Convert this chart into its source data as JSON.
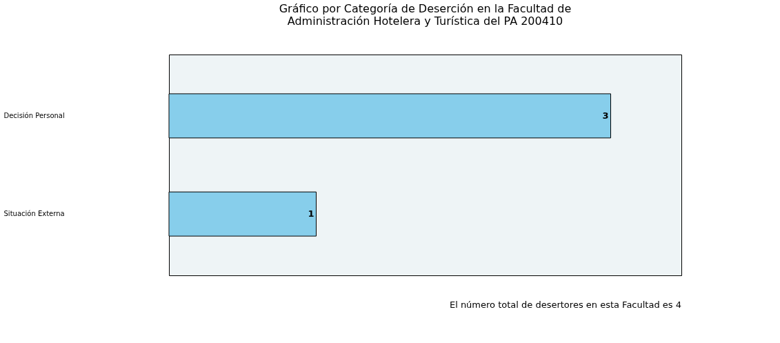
{
  "chart_data": {
    "type": "bar",
    "orientation": "horizontal",
    "title": [
      "Gráfico por Categoría de Deserción en la Facultad de",
      "Administración Hotelera y Turística del PA 200410"
    ],
    "categories": [
      "Decisión Personal",
      "Situación Externa"
    ],
    "values": [
      3,
      1
    ],
    "color": "#87ceeb",
    "data_labels": true,
    "annotations": [
      "El número total de desertores en esta Facultad es 4"
    ]
  }
}
